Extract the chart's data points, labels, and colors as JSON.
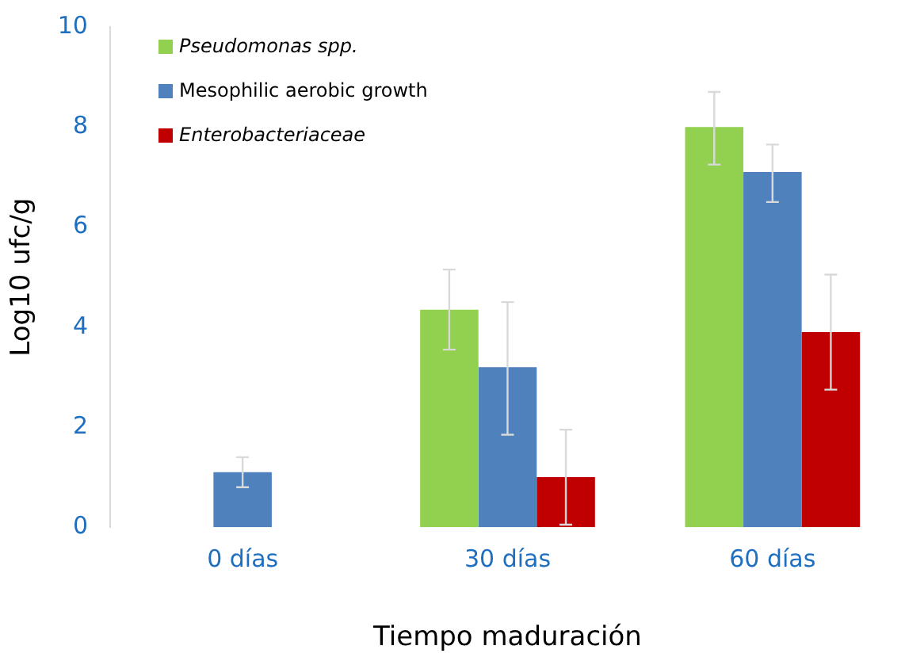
{
  "chart_data": {
    "type": "bar",
    "xlabel": "Tiempo maduración",
    "ylabel": "Log10 ufc/g",
    "categories": [
      "0 días",
      "30 días",
      "60 días"
    ],
    "series": [
      {
        "name": "Pseudomonas spp.",
        "color": "#92d050",
        "values": [
          null,
          4.35,
          8.0
        ],
        "errors": [
          null,
          [
            3.55,
            5.15
          ],
          [
            7.25,
            8.7
          ]
        ]
      },
      {
        "name": "Mesophilic aerobic growth",
        "color": "#4f81bd",
        "values": [
          1.1,
          3.2,
          7.1
        ],
        "errors": [
          [
            0.8,
            1.4
          ],
          [
            1.85,
            4.5
          ],
          [
            6.5,
            7.65
          ]
        ]
      },
      {
        "name": "Enterobacteriaceae",
        "color": "#c00000",
        "values": [
          null,
          1.0,
          3.9
        ],
        "errors": [
          null,
          [
            0.05,
            1.95
          ],
          [
            2.75,
            5.05
          ]
        ]
      }
    ],
    "ylim": [
      0,
      10
    ],
    "yticks": [
      0,
      2,
      4,
      6,
      8,
      10
    ],
    "grid": false,
    "legend": "top left"
  }
}
